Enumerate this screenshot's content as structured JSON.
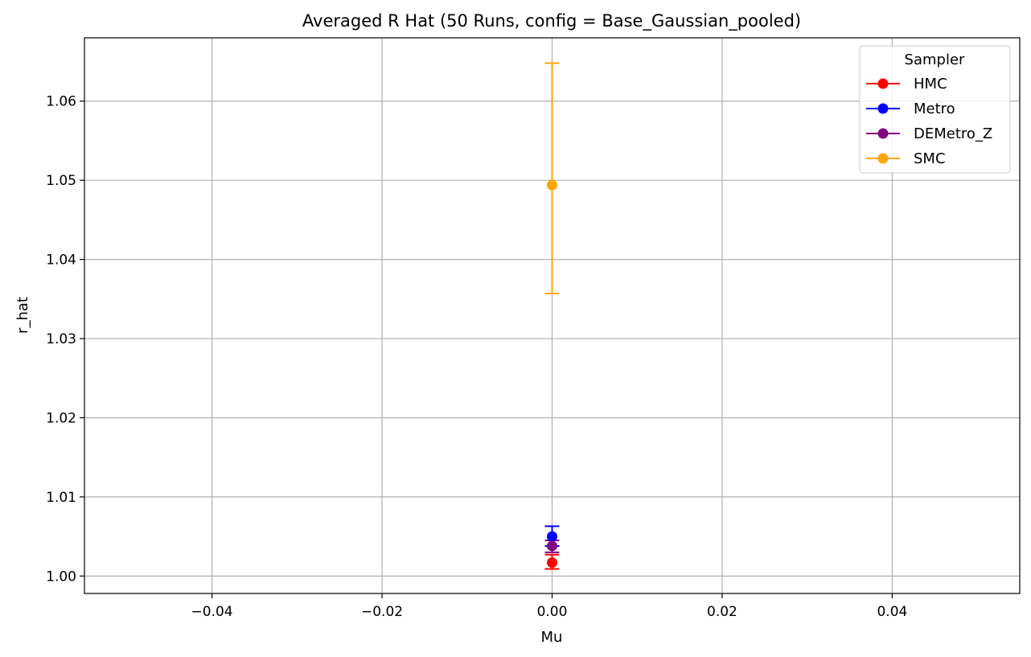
{
  "chart_data": {
    "type": "scatter",
    "title": "Averaged R Hat (50 Runs, config = Base_Gaussian_pooled)",
    "xlabel": "Mu",
    "ylabel": "r_hat",
    "xlim": [
      -0.055,
      0.055
    ],
    "ylim": [
      0.9978,
      1.068
    ],
    "xticks": [
      -0.04,
      -0.02,
      0.0,
      0.02,
      0.04
    ],
    "xtick_labels": [
      "−0.04",
      "−0.02",
      "0.00",
      "0.02",
      "0.04"
    ],
    "yticks": [
      1.0,
      1.01,
      1.02,
      1.03,
      1.04,
      1.05,
      1.06
    ],
    "ytick_labels": [
      "1.00",
      "1.01",
      "1.02",
      "1.03",
      "1.04",
      "1.05",
      "1.06"
    ],
    "grid": true,
    "legend_title": "Sampler",
    "legend_position": "upper right",
    "series": [
      {
        "name": "HMC",
        "color": "#ff0000",
        "x": 0.0,
        "y": 1.0017,
        "err_low": 1.0009,
        "err_high": 1.0027
      },
      {
        "name": "Metro",
        "color": "#0000ff",
        "x": 0.0,
        "y": 1.005,
        "err_low": 1.0038,
        "err_high": 1.0063
      },
      {
        "name": "DEMetro_Z",
        "color": "#800080",
        "x": 0.0,
        "y": 1.0038,
        "err_low": 1.003,
        "err_high": 1.0045
      },
      {
        "name": "SMC",
        "color": "#ffa500",
        "x": 0.0,
        "y": 1.0494,
        "err_low": 1.0357,
        "err_high": 1.0648
      }
    ]
  }
}
